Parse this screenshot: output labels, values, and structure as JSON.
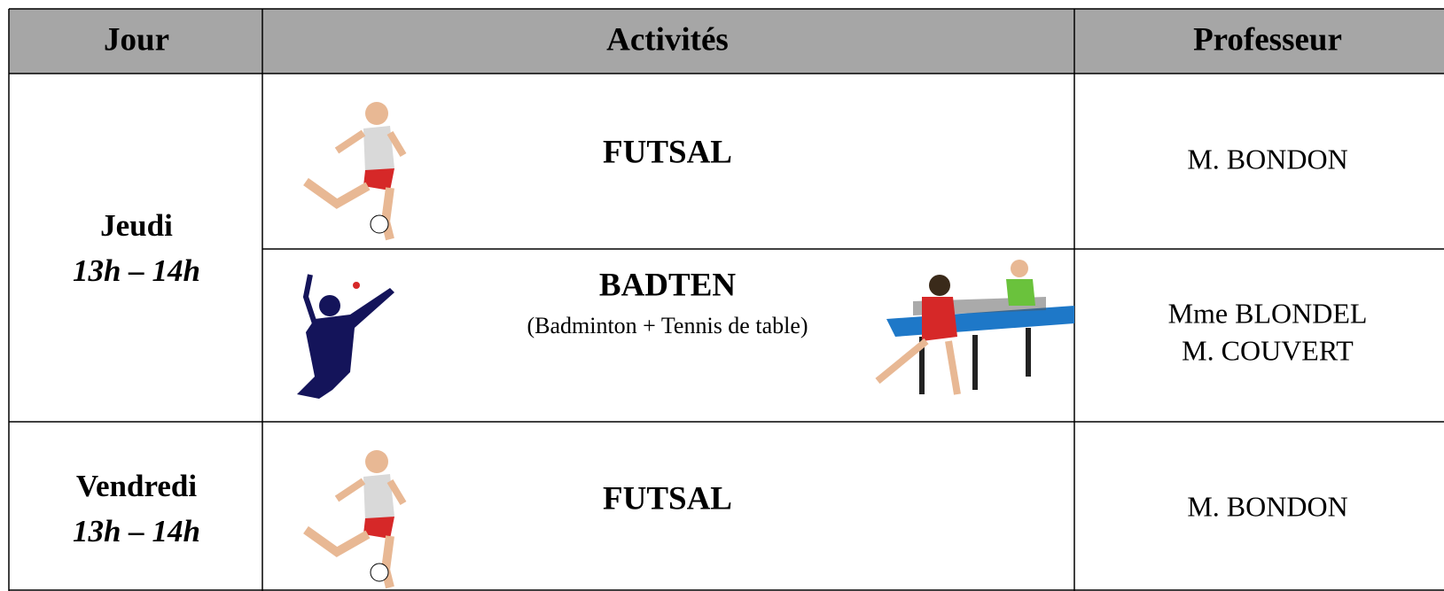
{
  "table": {
    "header": [
      "Jour",
      "Activités",
      "Professeur"
    ],
    "rows": [
      {
        "day": "Jeudi",
        "time": "13h – 14h",
        "activities": [
          {
            "name": "FUTSAL",
            "teacher": [
              "M. BONDON"
            ]
          },
          {
            "name": "BADTEN",
            "detail": "(Badminton + Tennis de table)",
            "teacher": [
              "Mme BLONDEL",
              "M. COUVERT"
            ]
          }
        ]
      },
      {
        "day": "Vendredi",
        "time": "13h – 14h",
        "activities": [
          {
            "name": "FUTSAL",
            "teacher": [
              "M. BONDON"
            ]
          }
        ]
      }
    ]
  }
}
